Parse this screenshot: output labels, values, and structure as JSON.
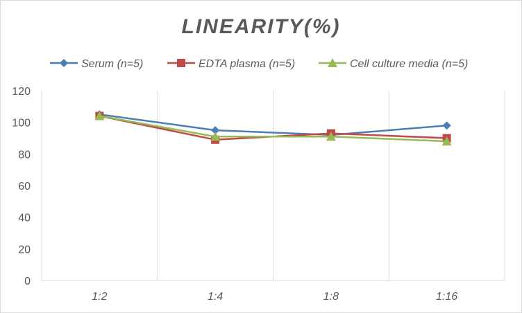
{
  "chart_data": {
    "type": "line",
    "title": "LINEARITY(%)",
    "xlabel": "",
    "ylabel": "",
    "categories": [
      "1:2",
      "1:4",
      "1:8",
      "1:16"
    ],
    "ylim": [
      0,
      120
    ],
    "yticks": [
      0,
      20,
      40,
      60,
      80,
      100,
      120
    ],
    "grid": "vertical",
    "legend_position": "top",
    "series": [
      {
        "name": "Serum (n=5)",
        "values": [
          105,
          95,
          92,
          98
        ],
        "color": "#4a7ebb",
        "marker": "diamond"
      },
      {
        "name": "EDTA plasma (n=5)",
        "values": [
          104,
          89,
          93,
          90
        ],
        "color": "#be4b48",
        "marker": "square"
      },
      {
        "name": "Cell culture media (n=5)",
        "values": [
          104,
          91,
          91,
          88
        ],
        "color": "#98b954",
        "marker": "triangle"
      }
    ]
  }
}
